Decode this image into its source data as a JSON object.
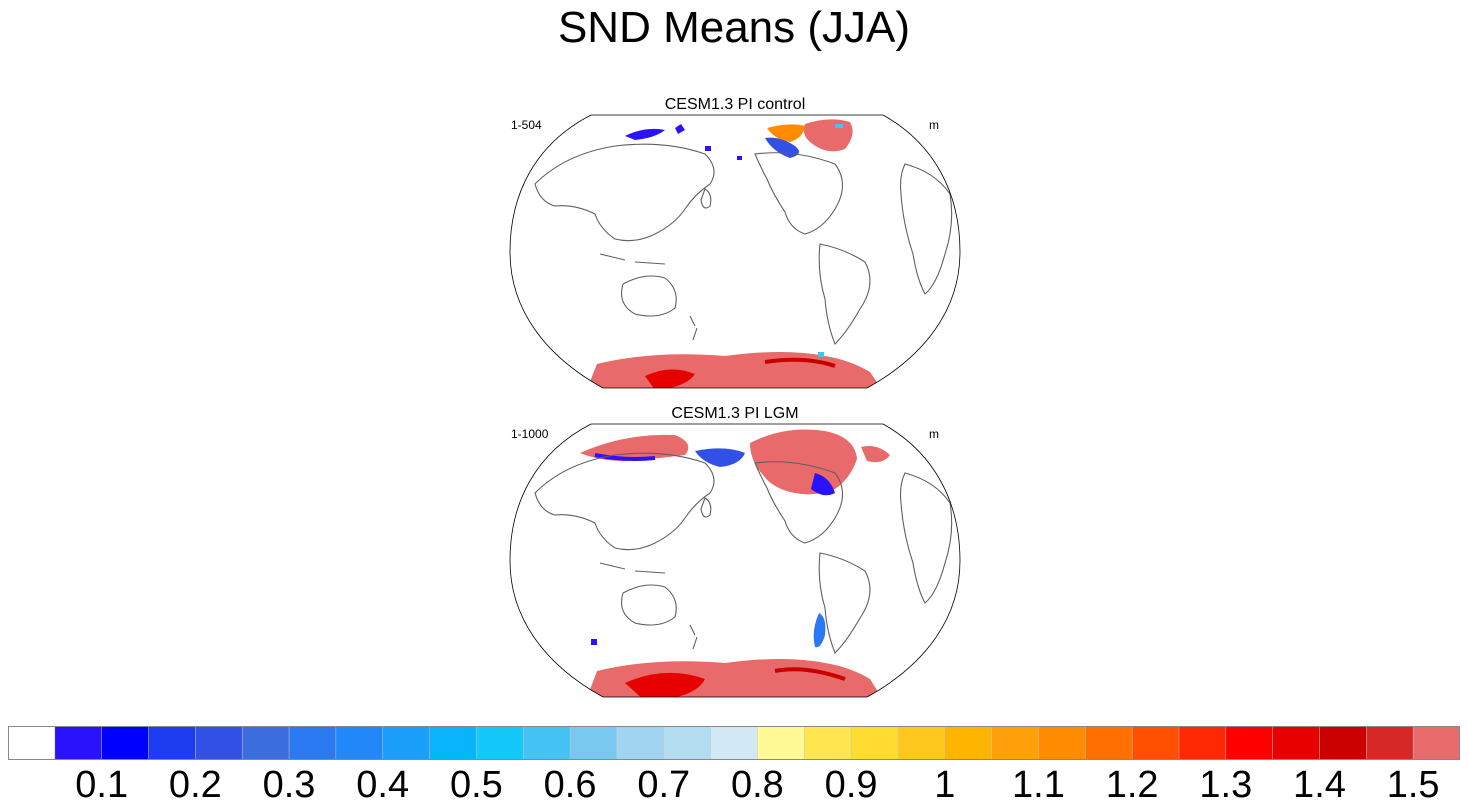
{
  "title": "SND Means (JJA)",
  "panels": [
    {
      "title": "CESM1.3 PI control",
      "left_label": "1-504",
      "right_label": "m"
    },
    {
      "title": "CESM1.3 PI LGM",
      "left_label": "1-1000",
      "right_label": "m"
    }
  ],
  "colorbar": {
    "colors": [
      "#ffffff",
      "#2a12fa",
      "#0000ff",
      "#1e3cf0",
      "#3250e6",
      "#3c6ee0",
      "#2a78f2",
      "#2288fa",
      "#1aa0fa",
      "#0ab4fa",
      "#14c8fa",
      "#46c3f5",
      "#78c8f0",
      "#a0d4f0",
      "#b4dcf0",
      "#d2e8f5",
      "#fffa96",
      "#ffe650",
      "#ffdc32",
      "#ffc81e",
      "#ffb400",
      "#ffa00a",
      "#ff8c00",
      "#ff7000",
      "#ff5000",
      "#ff2800",
      "#ff0000",
      "#e60000",
      "#c80000",
      "#d72828",
      "#e86a6a"
    ],
    "labels": [
      "0.1",
      "0.2",
      "0.3",
      "0.4",
      "0.5",
      "0.6",
      "0.7",
      "0.8",
      "0.9",
      "1",
      "1.1",
      "1.2",
      "1.3",
      "1.4",
      "1.5"
    ]
  }
}
